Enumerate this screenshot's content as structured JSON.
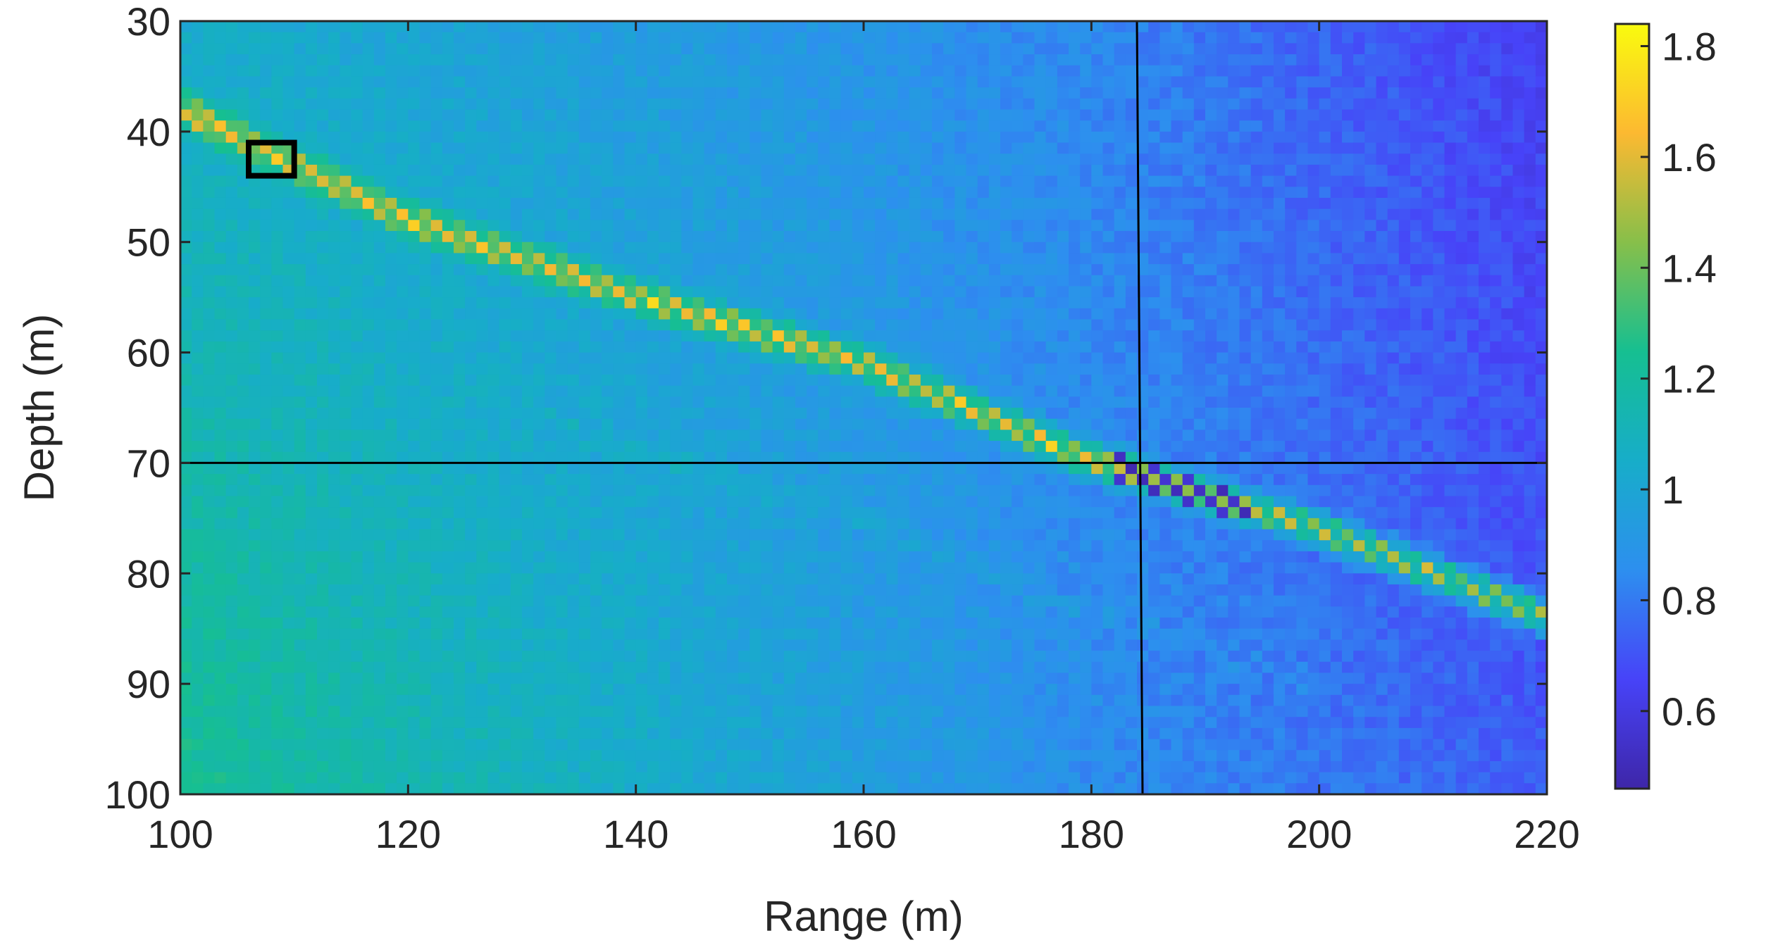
{
  "chart_data": {
    "type": "heatmap",
    "title": "",
    "xlabel": "Range (m)",
    "ylabel": "Depth (m)",
    "xlim": [
      100,
      220
    ],
    "ylim": [
      100,
      30
    ],
    "y_reversed": true,
    "xticks": [
      100,
      120,
      140,
      160,
      180,
      200,
      220
    ],
    "yticks": [
      30,
      40,
      50,
      60,
      70,
      80,
      90,
      100
    ],
    "colorbar": {
      "range": [
        0.46,
        1.84
      ],
      "ticks": [
        0.6,
        0.8,
        1,
        1.2,
        1.4,
        1.6,
        1.8
      ],
      "colormap": "parula",
      "colormap_stops": [
        "#3e26a8",
        "#4743f8",
        "#2d8fef",
        "#17adc9",
        "#16bf91",
        "#87bf4a",
        "#fcb931",
        "#f9fb0e"
      ]
    },
    "grid": {
      "x_start": 100,
      "x_end": 220,
      "nx": 120,
      "y_start": 30,
      "y_end": 100,
      "ny": 70
    },
    "background_field": {
      "description_free_params": true,
      "value_at_x100_top": 1.05,
      "value_at_x100_bottom": 1.24,
      "value_at_x180_top": 0.84,
      "value_at_x180_bottom": 0.86,
      "value_at_x220_top": 0.64,
      "value_at_x220_bottom": 0.72,
      "noise_amplitude": 0.05
    },
    "anomaly_trace": {
      "points": [
        [
          100,
          38
        ],
        [
          120,
          48
        ],
        [
          140,
          55
        ],
        [
          160,
          61
        ],
        [
          178,
          69
        ],
        [
          184,
          71
        ],
        [
          200,
          76
        ],
        [
          220,
          84
        ]
      ],
      "peak_value": 1.75,
      "peak_value_right_of_184": 1.62,
      "dark_value_near_184": 0.48
    },
    "crosshair": {
      "x": 184,
      "y": 70
    },
    "marker_box": {
      "x": [
        106,
        110
      ],
      "y": [
        41,
        44
      ]
    }
  },
  "colors": {
    "axis": "#262626",
    "crosshair": "#000000",
    "marker_box": "#000000"
  }
}
